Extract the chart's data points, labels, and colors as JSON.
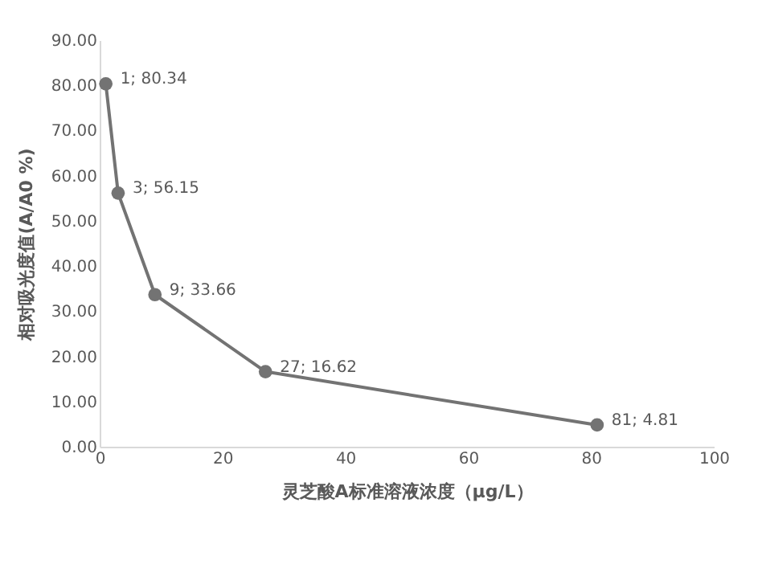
{
  "chart_data": {
    "type": "line",
    "xlabel": "灵芝酸A标准溶液浓度（μg/L）",
    "ylabel": "相对吸光度值(A/A0 %)",
    "x": [
      1,
      3,
      9,
      27,
      81
    ],
    "series": [
      {
        "color": "#737373",
        "values": [
          80.34,
          56.15,
          33.66,
          16.62,
          4.81
        ],
        "value_labels": [
          "1; 80.34",
          "3; 56.15",
          "9; 33.66",
          "27; 16.62",
          "81; 4.81"
        ]
      }
    ],
    "xlim": [
      0,
      100
    ],
    "xticks": [
      0,
      20,
      40,
      60,
      80,
      100
    ],
    "ylim": [
      0,
      90
    ],
    "yticks": [
      {
        "value": 0,
        "label": "0.00"
      },
      {
        "value": 10,
        "label": "10.00"
      },
      {
        "value": 20,
        "label": "20.00"
      },
      {
        "value": 30,
        "label": "30.00"
      },
      {
        "value": 40,
        "label": "40.00"
      },
      {
        "value": 50,
        "label": "50.00"
      },
      {
        "value": 60,
        "label": "60.00"
      },
      {
        "value": 70,
        "label": "70.00"
      },
      {
        "value": 80,
        "label": "80.00"
      },
      {
        "value": 90,
        "label": "90.00"
      }
    ],
    "marker": "circle",
    "line_style": "solid",
    "grid": false,
    "legend": false
  }
}
